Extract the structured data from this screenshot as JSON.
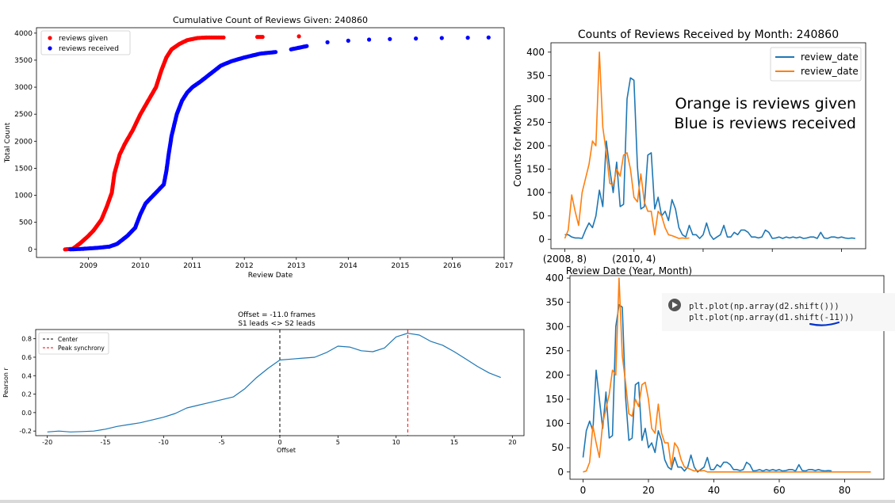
{
  "colors": {
    "red": "#ff0000",
    "blue": "#0000ff",
    "mpl_blue": "#1f77b4",
    "mpl_orange": "#ff7f0e",
    "black": "#000000",
    "code_bg": "#f7f7f7",
    "underline": "#0033cc"
  },
  "chart_data": [
    {
      "id": "cumulative",
      "type": "scatter",
      "title": "Cumulative Count of Reviews Given: 240860",
      "xlabel": "Review Date",
      "ylabel": "Total Count",
      "xlim": [
        2008.0,
        2017.0
      ],
      "ylim": [
        -150,
        4100
      ],
      "xticks": [
        "2009",
        "2010",
        "2011",
        "2012",
        "2013",
        "2014",
        "2015",
        "2016",
        "2017"
      ],
      "yticks": [
        "0",
        "500",
        "1000",
        "1500",
        "2000",
        "2500",
        "3000",
        "3500",
        "4000"
      ],
      "legend": "top-left",
      "series": [
        {
          "name": "reviews given",
          "color": "#ff0000",
          "points": [
            [
              2008.55,
              0
            ],
            [
              2008.7,
              10
            ],
            [
              2008.85,
              120
            ],
            [
              2009.0,
              250
            ],
            [
              2009.1,
              350
            ],
            [
              2009.25,
              550
            ],
            [
              2009.35,
              780
            ],
            [
              2009.45,
              1050
            ],
            [
              2009.5,
              1400
            ],
            [
              2009.6,
              1750
            ],
            [
              2009.7,
              1950
            ],
            [
              2009.85,
              2200
            ],
            [
              2010.0,
              2500
            ],
            [
              2010.15,
              2750
            ],
            [
              2010.3,
              3000
            ],
            [
              2010.4,
              3300
            ],
            [
              2010.5,
              3550
            ],
            [
              2010.6,
              3700
            ],
            [
              2010.75,
              3800
            ],
            [
              2010.9,
              3870
            ],
            [
              2011.1,
              3910
            ],
            [
              2011.3,
              3920
            ],
            [
              2011.6,
              3920
            ],
            [
              2012.25,
              3930
            ],
            [
              2012.35,
              3930
            ],
            [
              2013.05,
              3940
            ]
          ]
        },
        {
          "name": "reviews received",
          "color": "#0000ff",
          "points": [
            [
              2008.65,
              0
            ],
            [
              2008.9,
              10
            ],
            [
              2009.2,
              30
            ],
            [
              2009.4,
              50
            ],
            [
              2009.55,
              100
            ],
            [
              2009.75,
              250
            ],
            [
              2009.9,
              400
            ],
            [
              2010.0,
              650
            ],
            [
              2010.1,
              850
            ],
            [
              2010.25,
              1000
            ],
            [
              2010.35,
              1100
            ],
            [
              2010.45,
              1200
            ],
            [
              2010.5,
              1450
            ],
            [
              2010.55,
              1800
            ],
            [
              2010.6,
              2100
            ],
            [
              2010.7,
              2500
            ],
            [
              2010.8,
              2750
            ],
            [
              2010.9,
              2900
            ],
            [
              2011.0,
              3000
            ],
            [
              2011.15,
              3100
            ],
            [
              2011.35,
              3250
            ],
            [
              2011.55,
              3400
            ],
            [
              2011.75,
              3480
            ],
            [
              2012.0,
              3550
            ],
            [
              2012.3,
              3620
            ],
            [
              2012.6,
              3650
            ],
            [
              2012.9,
              3700
            ],
            [
              2013.2,
              3760
            ],
            [
              2013.6,
              3830
            ],
            [
              2014.0,
              3860
            ],
            [
              2014.4,
              3880
            ],
            [
              2014.8,
              3890
            ],
            [
              2015.3,
              3900
            ],
            [
              2015.8,
              3910
            ],
            [
              2016.3,
              3915
            ],
            [
              2016.7,
              3920
            ]
          ]
        }
      ]
    },
    {
      "id": "monthly",
      "type": "line",
      "title": "Counts of Reviews Received by Month: 240860",
      "xlabel": "Review Date (Year, Month)",
      "ylabel": "Counts for Month",
      "ylim": [
        -20,
        420
      ],
      "yticks": [
        "0",
        "50",
        "100",
        "150",
        "200",
        "250",
        "300",
        "350",
        "400"
      ],
      "xticklabels": [
        "(2008, 8)",
        "(2010, 4)"
      ],
      "legend": "top-right",
      "annotation": [
        "Orange is reviews given",
        "Blue is reviews received"
      ],
      "series": [
        {
          "name": "review_date",
          "color": "#1f77b4",
          "values": [
            10,
            10,
            5,
            3,
            3,
            2,
            20,
            35,
            25,
            50,
            105,
            70,
            210,
            150,
            100,
            165,
            70,
            75,
            300,
            345,
            340,
            155,
            65,
            70,
            180,
            185,
            65,
            90,
            50,
            60,
            40,
            85,
            65,
            25,
            10,
            5,
            30,
            10,
            10,
            2,
            10,
            35,
            10,
            0,
            5,
            10,
            30,
            5,
            5,
            15,
            10,
            20,
            20,
            15,
            5,
            5,
            3,
            5,
            20,
            15,
            2,
            3,
            5,
            2,
            5,
            3,
            5,
            3,
            5,
            2,
            3,
            5,
            5,
            2,
            15,
            3,
            2,
            5,
            5,
            3,
            5,
            3,
            2,
            3,
            2
          ]
        },
        {
          "name": "review_date",
          "color": "#ff7f0e",
          "values": [
            2,
            20,
            95,
            60,
            30,
            100,
            130,
            160,
            210,
            200,
            400,
            240,
            185,
            120,
            115,
            150,
            135,
            180,
            185,
            150,
            90,
            80,
            140,
            80,
            60,
            60,
            10,
            60,
            50,
            25,
            10,
            8,
            5,
            2,
            3,
            2,
            3
          ]
        }
      ]
    },
    {
      "id": "shifted",
      "type": "line",
      "xlim": [
        -4,
        92
      ],
      "ylim": [
        -15,
        405
      ],
      "xticks": [
        "0",
        "20",
        "40",
        "60",
        "80"
      ],
      "yticks": [
        "0",
        "50",
        "100",
        "150",
        "200",
        "250",
        "300",
        "350",
        "400"
      ],
      "code": [
        "plt.plot(np.array(d2.shift()))",
        "plt.plot(np.array(d1.shift(-11)))"
      ],
      "series": [
        {
          "color": "#1f77b4",
          "values": [
            30,
            85,
            105,
            85,
            210,
            150,
            90,
            165,
            70,
            75,
            300,
            345,
            340,
            155,
            65,
            70,
            180,
            185,
            65,
            90,
            50,
            60,
            40,
            85,
            65,
            25,
            10,
            5,
            30,
            10,
            10,
            2,
            10,
            35,
            10,
            0,
            5,
            10,
            30,
            5,
            5,
            15,
            10,
            20,
            20,
            15,
            5,
            5,
            3,
            5,
            20,
            15,
            2,
            3,
            5,
            2,
            5,
            3,
            5,
            3,
            5,
            2,
            3,
            5,
            5,
            2,
            15,
            3,
            2,
            5,
            5,
            3,
            5,
            3,
            2,
            3,
            2
          ]
        },
        {
          "color": "#ff7f0e",
          "values": [
            0,
            2,
            20,
            95,
            60,
            30,
            100,
            130,
            160,
            210,
            200,
            400,
            240,
            185,
            120,
            115,
            150,
            135,
            180,
            185,
            150,
            90,
            80,
            140,
            80,
            60,
            60,
            10,
            60,
            50,
            25,
            10,
            8,
            5,
            2,
            3,
            2,
            3,
            0,
            0,
            0,
            0,
            0,
            0,
            0,
            0,
            0,
            0,
            0,
            0,
            0,
            0,
            0,
            0,
            0,
            0,
            0,
            0,
            0,
            0,
            0,
            0,
            0,
            0,
            0,
            0,
            0,
            0,
            0,
            0,
            0,
            0,
            0,
            0,
            0,
            0,
            0,
            0,
            0,
            0,
            0,
            0,
            0,
            0,
            0,
            0,
            0,
            0,
            0
          ]
        }
      ]
    },
    {
      "id": "synchrony",
      "type": "line",
      "title": [
        "Offset = -11.0 frames",
        "S1 leads <> S2 leads"
      ],
      "xlabel": "Offset",
      "ylabel": "Pearson r",
      "xlim": [
        -21,
        21
      ],
      "ylim": [
        -0.25,
        0.9
      ],
      "xticks": [
        "-20",
        "-15",
        "-10",
        "-5",
        "0",
        "5",
        "10",
        "15",
        "20"
      ],
      "yticks": [
        "-0.2",
        "0.0",
        "0.2",
        "0.4",
        "0.6",
        "0.8"
      ],
      "legend": "top-left",
      "legend_entries": [
        {
          "name": "Center",
          "color": "#000000",
          "x": 0
        },
        {
          "name": "Peak synchrony",
          "color": "#ff0000",
          "x": 11
        }
      ],
      "series": [
        {
          "color": "#1f77b4",
          "x": [
            -20,
            -19,
            -18,
            -17,
            -16,
            -15,
            -14,
            -13,
            -12,
            -11,
            -10,
            -9,
            -8,
            -7,
            -6,
            -5,
            -4,
            -3,
            -2,
            -1,
            0,
            1,
            2,
            3,
            4,
            5,
            6,
            7,
            8,
            9,
            10,
            11,
            12,
            13,
            14,
            15,
            16,
            17,
            18,
            19
          ],
          "values": [
            -0.21,
            -0.2,
            -0.21,
            -0.205,
            -0.2,
            -0.18,
            -0.15,
            -0.13,
            -0.11,
            -0.08,
            -0.05,
            -0.01,
            0.05,
            0.08,
            0.11,
            0.14,
            0.17,
            0.26,
            0.38,
            0.48,
            0.57,
            0.58,
            0.59,
            0.6,
            0.65,
            0.72,
            0.71,
            0.67,
            0.66,
            0.7,
            0.82,
            0.86,
            0.84,
            0.77,
            0.73,
            0.66,
            0.58,
            0.5,
            0.43,
            0.38
          ]
        }
      ]
    }
  ]
}
